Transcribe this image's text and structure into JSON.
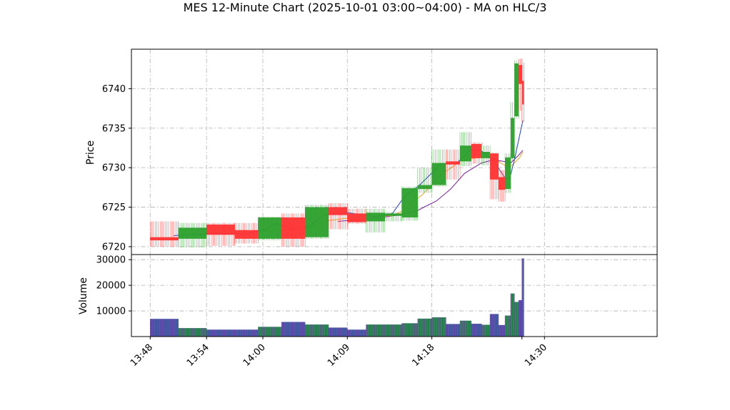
{
  "chart_data": {
    "type": "candlestick",
    "title": "MES 12-Minute Chart (2025-10-01 03:00~04:00) - MA on HLC/3",
    "xlabel": "",
    "ylabel": "Price",
    "volume_label": "Volume",
    "price_ylim": [
      6719,
      6745
    ],
    "volume_ylim": [
      0,
      32000
    ],
    "price_ticks": [
      6720,
      6725,
      6730,
      6735,
      6740
    ],
    "volume_ticks": [
      10000,
      20000,
      30000
    ],
    "volume_tick_labels": [
      "10000",
      "20000",
      "30000"
    ],
    "x_ticks": [
      "13:48",
      "13:54",
      "14:00",
      "14:09",
      "14:18",
      "14:30"
    ],
    "x_tick_minutes": [
      0,
      6,
      12,
      21,
      30,
      42
    ],
    "x_range_minutes": [
      -2,
      54
    ],
    "grid": true,
    "colors": {
      "up": "#2ca02c",
      "down": "#ff3333",
      "volume": "#2e8b57",
      "volume_edge": "#6a1b9a",
      "ma_fast": "#1f3fcf",
      "ma_mid": "#f5a623",
      "ma_slow": "#7b1fa2"
    },
    "candles": [
      {
        "t": 0,
        "w": 3,
        "o": 6721.2,
        "h": 6723.2,
        "l": 6720.0,
        "c": 6720.8,
        "v": 6900
      },
      {
        "t": 3,
        "w": 3,
        "o": 6721.0,
        "h": 6723.0,
        "l": 6719.9,
        "c": 6722.4,
        "v": 3300
      },
      {
        "t": 6,
        "w": 3,
        "o": 6722.8,
        "h": 6723.0,
        "l": 6720.1,
        "c": 6721.5,
        "v": 2700
      },
      {
        "t": 9,
        "w": 2.5,
        "o": 6722.1,
        "h": 6723.0,
        "l": 6720.4,
        "c": 6721.0,
        "v": 2700
      },
      {
        "t": 11.5,
        "w": 2.5,
        "o": 6721.0,
        "h": 6723.8,
        "l": 6720.8,
        "c": 6723.7,
        "v": 3800
      },
      {
        "t": 14,
        "w": 2.5,
        "o": 6723.7,
        "h": 6724.2,
        "l": 6720.0,
        "c": 6721.0,
        "v": 5700
      },
      {
        "t": 16.5,
        "w": 2.5,
        "o": 6721.2,
        "h": 6725.3,
        "l": 6721.0,
        "c": 6725.0,
        "v": 4700
      },
      {
        "t": 19,
        "w": 2,
        "o": 6725.0,
        "h": 6725.5,
        "l": 6722.2,
        "c": 6724.0,
        "v": 3500
      },
      {
        "t": 21,
        "w": 2,
        "o": 6724.2,
        "h": 6724.8,
        "l": 6722.9,
        "c": 6723.1,
        "v": 2700
      },
      {
        "t": 23,
        "w": 2,
        "o": 6723.2,
        "h": 6724.8,
        "l": 6721.8,
        "c": 6724.3,
        "v": 4700
      },
      {
        "t": 25,
        "w": 1.8,
        "o": 6723.9,
        "h": 6724.4,
        "l": 6723.2,
        "c": 6724.2,
        "v": 4700
      },
      {
        "t": 26.8,
        "w": 1.7,
        "o": 6723.7,
        "h": 6727.6,
        "l": 6723.3,
        "c": 6727.4,
        "v": 5200
      },
      {
        "t": 28.5,
        "w": 1.5,
        "o": 6727.3,
        "h": 6730.0,
        "l": 6726.8,
        "c": 6727.8,
        "v": 7000
      },
      {
        "t": 30,
        "w": 1.5,
        "o": 6727.8,
        "h": 6732.3,
        "l": 6727.6,
        "c": 6730.6,
        "v": 7500
      },
      {
        "t": 31.5,
        "w": 1.5,
        "o": 6730.8,
        "h": 6732.3,
        "l": 6728.5,
        "c": 6730.4,
        "v": 4900
      },
      {
        "t": 33,
        "w": 1.2,
        "o": 6730.8,
        "h": 6734.5,
        "l": 6730.2,
        "c": 6732.8,
        "v": 6200
      },
      {
        "t": 34.2,
        "w": 1.1,
        "o": 6733.0,
        "h": 6733.2,
        "l": 6730.5,
        "c": 6731.2,
        "v": 5000
      },
      {
        "t": 35.3,
        "w": 0.9,
        "o": 6731.2,
        "h": 6732.8,
        "l": 6730.3,
        "c": 6732.0,
        "v": 4600
      },
      {
        "t": 36.2,
        "w": 0.9,
        "o": 6731.8,
        "h": 6731.9,
        "l": 6726.0,
        "c": 6728.5,
        "v": 8800
      },
      {
        "t": 37.1,
        "w": 0.7,
        "o": 6728.8,
        "h": 6729.7,
        "l": 6725.7,
        "c": 6727.2,
        "v": 4500
      },
      {
        "t": 37.8,
        "w": 0.6,
        "o": 6727.3,
        "h": 6731.8,
        "l": 6726.8,
        "c": 6731.3,
        "v": 8200
      },
      {
        "t": 38.4,
        "w": 0.4,
        "o": 6731.2,
        "h": 6738.3,
        "l": 6730.8,
        "c": 6736.3,
        "v": 16800
      },
      {
        "t": 38.8,
        "w": 0.45,
        "o": 6736.5,
        "h": 6743.6,
        "l": 6736.2,
        "c": 6743.2,
        "v": 13500
      },
      {
        "t": 39.25,
        "w": 0.35,
        "o": 6743.0,
        "h": 6743.8,
        "l": 6737.2,
        "c": 6740.6,
        "v": 14200
      },
      {
        "t": 39.6,
        "w": 0.2,
        "o": 6741.0,
        "h": 6743.3,
        "l": 6735.8,
        "c": 6738.0,
        "v": 30500
      }
    ],
    "ma_fast": [
      [
        2.5,
        6721.4
      ],
      [
        7,
        6721.7
      ],
      [
        10,
        6721.6
      ],
      [
        12.3,
        6722.2
      ],
      [
        13.3,
        6722.9
      ],
      [
        15,
        6722.3
      ],
      [
        17,
        6722.6
      ],
      [
        18.5,
        6724.0
      ],
      [
        21,
        6724.3
      ],
      [
        24,
        6723.8
      ],
      [
        25.8,
        6724.2
      ],
      [
        27,
        6726.2
      ],
      [
        28.7,
        6727.8
      ],
      [
        31,
        6730.5
      ],
      [
        32.6,
        6730.5
      ],
      [
        34.1,
        6732.3
      ],
      [
        35.3,
        6732.1
      ],
      [
        36.5,
        6731.0
      ],
      [
        37.3,
        6729.6
      ],
      [
        37.9,
        6728.5
      ],
      [
        38.3,
        6728.7
      ],
      [
        38.8,
        6731.0
      ],
      [
        39.3,
        6733.8
      ],
      [
        39.7,
        6736.0
      ]
    ],
    "ma_mid": [
      [
        12,
        6722.0
      ],
      [
        16,
        6722.2
      ],
      [
        19,
        6723.3
      ],
      [
        23,
        6723.9
      ],
      [
        25.8,
        6723.9
      ],
      [
        27,
        6724.6
      ],
      [
        29,
        6726.6
      ],
      [
        31,
        6729.1
      ],
      [
        33,
        6730.8
      ],
      [
        35.3,
        6731.4
      ],
      [
        36.6,
        6731.2
      ],
      [
        37.6,
        6730.4
      ],
      [
        38.2,
        6730.0
      ],
      [
        38.8,
        6730.6
      ],
      [
        39.3,
        6731.2
      ],
      [
        39.7,
        6732.0
      ]
    ],
    "ma_slow": [
      [
        20,
        6723.2
      ],
      [
        24,
        6723.6
      ],
      [
        26.5,
        6724.0
      ],
      [
        28.5,
        6724.6
      ],
      [
        30.5,
        6725.8
      ],
      [
        32,
        6727.3
      ],
      [
        33.5,
        6729.3
      ],
      [
        35.3,
        6730.6
      ],
      [
        36.6,
        6731.0
      ],
      [
        37.6,
        6730.8
      ],
      [
        38.4,
        6730.6
      ],
      [
        39.1,
        6731.4
      ],
      [
        39.7,
        6732.2
      ]
    ]
  }
}
